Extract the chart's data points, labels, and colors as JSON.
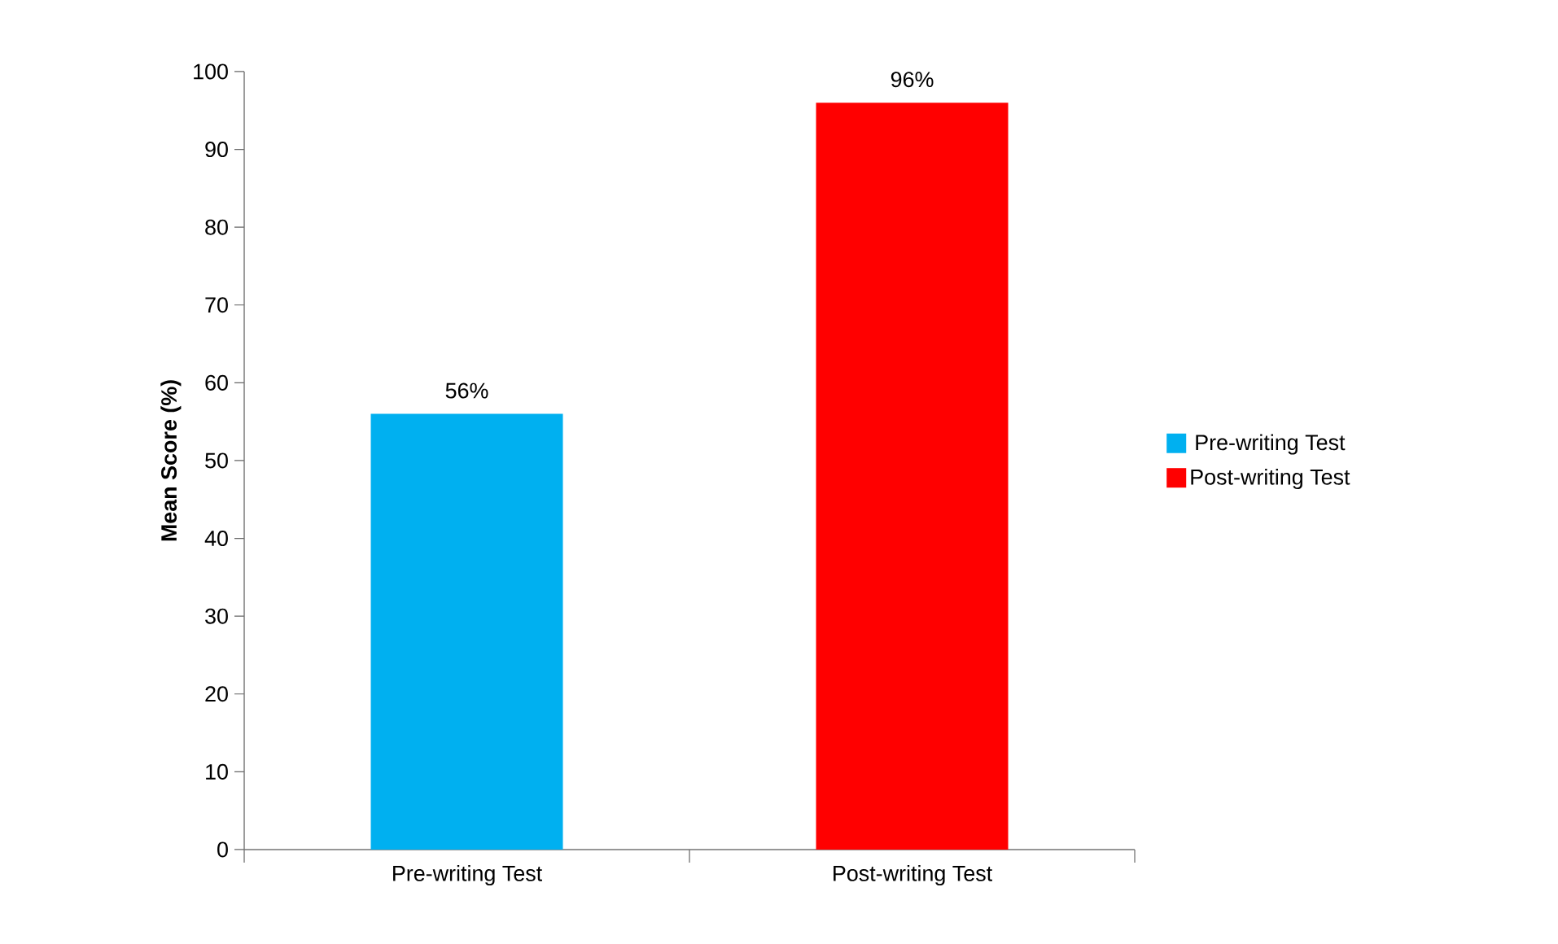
{
  "chart_data": {
    "type": "bar",
    "ylabel": "Mean Score (%)",
    "categories": [
      "Pre-writing Test",
      "Post-writing Test"
    ],
    "series": [
      {
        "name": "Pre-writing Test",
        "color": "#00b0f0",
        "values": [
          56,
          null
        ],
        "value_labels": [
          "56%",
          null
        ]
      },
      {
        "name": "Post-writing Test",
        "color": "#ff0000",
        "values": [
          null,
          96
        ],
        "value_labels": [
          null,
          "96%"
        ]
      }
    ],
    "ylim": [
      0,
      100
    ],
    "yticks": [
      0,
      10,
      20,
      30,
      40,
      50,
      60,
      70,
      80,
      90,
      100
    ],
    "legend": "right"
  }
}
